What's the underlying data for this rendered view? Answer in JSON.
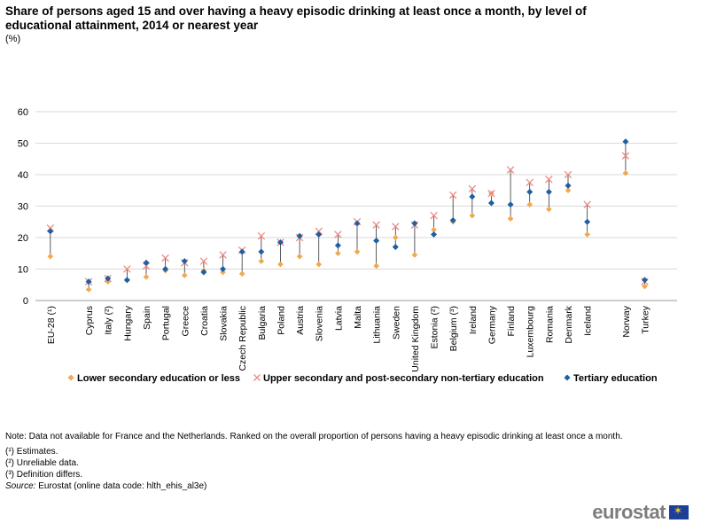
{
  "title": "Share of persons aged 15 and over having a heavy episodic drinking at least once a month, by level of educational attainment, 2014 or nearest year",
  "unit": "(%)",
  "colors": {
    "lower": "#f0a94c",
    "upper": "#ee8a83",
    "tertiary": "#1d5fa3",
    "grid": "#d9d9d9",
    "stem": "#333333"
  },
  "chart_data": {
    "type": "scatter",
    "ylim": [
      0,
      60
    ],
    "yticks": [
      "0",
      "10",
      "20",
      "30",
      "40",
      "50",
      "60"
    ],
    "group_breaks_after": [
      0,
      27,
      29
    ],
    "categories": [
      "EU-28 (¹)",
      "Cyprus",
      "Italy (²)",
      "Hungary",
      "Spain",
      "Portugal",
      "Greece",
      "Croatia",
      "Slovakia",
      "Czech Republic",
      "Bulgaria",
      "Poland",
      "Austria",
      "Slovenia",
      "Latvia",
      "Malta",
      "Lithuania",
      "Sweden",
      "United Kingdom",
      "Estonia (²)",
      "Belgium (³)",
      "Ireland",
      "Germany",
      "Finland",
      "Luxembourg",
      "Romania",
      "Denmark",
      "Iceland",
      "Norway",
      "Turkey"
    ],
    "series": [
      {
        "name": "Lower secondary education or less",
        "key": "lower",
        "marker": "diamond",
        "values": [
          14,
          3.5,
          6,
          6.5,
          7.5,
          9.5,
          8,
          9.5,
          9,
          8.5,
          12.5,
          11.5,
          14,
          11.5,
          15,
          15.5,
          11,
          20,
          14.5,
          22.5,
          25,
          27,
          34,
          26,
          30.5,
          29,
          35,
          21,
          40.5,
          4.5
        ]
      },
      {
        "name": "Upper secondary and post-secondary non-tertiary education",
        "key": "upper",
        "marker": "cross",
        "values": [
          23,
          6,
          7,
          10,
          11,
          13.5,
          12,
          12.5,
          14.5,
          16,
          20.5,
          18.5,
          20,
          22,
          21,
          25,
          24,
          23.5,
          24,
          27,
          33.5,
          35.5,
          34,
          41.5,
          37.5,
          38.5,
          40,
          30.5,
          46,
          6
        ]
      },
      {
        "name": "Tertiary education",
        "key": "tertiary",
        "marker": "diamond",
        "values": [
          22,
          6,
          7,
          6.5,
          12,
          10,
          12.5,
          9,
          10,
          15.5,
          15.5,
          18.5,
          20.5,
          21,
          17.5,
          24.5,
          19,
          17,
          24.5,
          21,
          25.5,
          33,
          31,
          30.5,
          34.5,
          34.5,
          36.5,
          25,
          50.5,
          6.5
        ]
      }
    ]
  },
  "legend": [
    {
      "label": "Lower secondary education or less",
      "key": "lower",
      "marker": "diamond"
    },
    {
      "label": "Upper secondary and post-secondary non-tertiary education",
      "key": "upper",
      "marker": "cross"
    },
    {
      "label": "Tertiary education",
      "key": "tertiary",
      "marker": "diamond"
    }
  ],
  "notes": {
    "note": "Note: Data not available for France and the Netherlands. Ranked on the overall proportion of persons having a heavy episodic drinking at least once a month.",
    "f1": "(¹) Estimates.",
    "f2": "(²) Unreliable data.",
    "f3": "(³) Definition differs.",
    "source_label": "Source:",
    "source_text": " Eurostat (online data code: hlth_ehis_al3e)"
  },
  "logo": {
    "text": "eurostat",
    "flag_icon": "eu-flag-icon"
  }
}
